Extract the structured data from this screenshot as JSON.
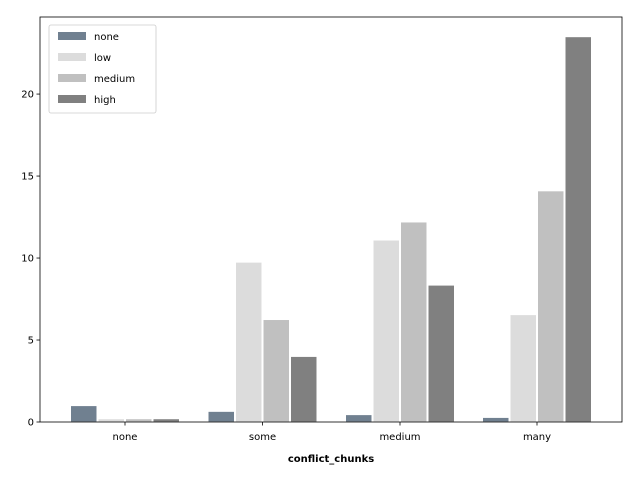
{
  "chart_data": {
    "type": "bar",
    "title": "",
    "xlabel": "conflict_chunks",
    "ylabel": "",
    "categories": [
      "none",
      "some",
      "medium",
      "many"
    ],
    "series": [
      {
        "name": "none",
        "color": "#708090",
        "values": [
          1.0,
          0.65,
          0.45,
          0.28
        ]
      },
      {
        "name": "low",
        "color": "#dcdcdc",
        "values": [
          0.2,
          9.75,
          11.1,
          6.55
        ]
      },
      {
        "name": "medium",
        "color": "#c0c0c0",
        "values": [
          0.2,
          6.25,
          12.2,
          14.1
        ]
      },
      {
        "name": "high",
        "color": "#808080",
        "values": [
          0.2,
          4.0,
          8.35,
          23.5
        ]
      }
    ],
    "ylim": [
      0,
      24.7
    ],
    "yticks": [
      0,
      5,
      10,
      15,
      20
    ],
    "grid": false,
    "legend_position": "top-left"
  }
}
